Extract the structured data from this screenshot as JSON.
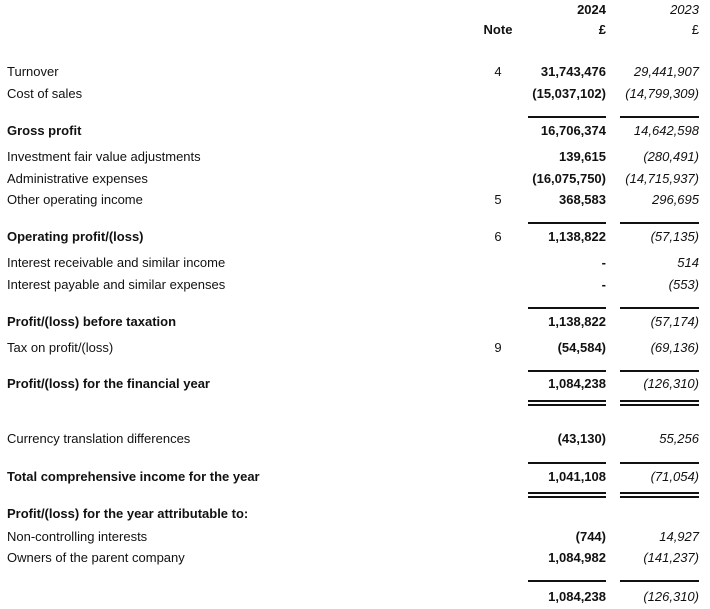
{
  "header": {
    "note_label": "Note",
    "year_current": "2024",
    "year_prior": "2023",
    "currency_current": "£",
    "currency_prior": "£"
  },
  "rows": [
    {
      "label": "Turnover",
      "note": "4",
      "current": "31,743,476",
      "prior": "29,441,907",
      "bold": false
    },
    {
      "label": "Cost of sales",
      "note": "",
      "current": "(15,037,102)",
      "prior": "(14,799,309)",
      "bold": false
    },
    {
      "label": "Gross profit",
      "note": "",
      "current": "16,706,374",
      "prior": "14,642,598",
      "bold": true
    },
    {
      "label": "Investment fair value adjustments",
      "note": "",
      "current": "139,615",
      "prior": "(280,491)",
      "bold": false
    },
    {
      "label": "Administrative expenses",
      "note": "",
      "current": "(16,075,750)",
      "prior": "(14,715,937)",
      "bold": false
    },
    {
      "label": "Other operating income",
      "note": "5",
      "current": "368,583",
      "prior": "296,695",
      "bold": false
    },
    {
      "label": "Operating profit/(loss)",
      "note": "6",
      "current": "1,138,822",
      "prior": "(57,135)",
      "bold": true
    },
    {
      "label": "Interest receivable and similar income",
      "note": "",
      "current": "-",
      "prior": "514",
      "bold": false
    },
    {
      "label": "Interest payable and similar expenses",
      "note": "",
      "current": "-",
      "prior": "(553)",
      "bold": false
    },
    {
      "label": "Profit/(loss) before taxation",
      "note": "",
      "current": "1,138,822",
      "prior": "(57,174)",
      "bold": true
    },
    {
      "label": "Tax on profit/(loss)",
      "note": "9",
      "current": "(54,584)",
      "prior": "(69,136)",
      "bold": false
    },
    {
      "label": "Profit/(loss) for the financial year",
      "note": "",
      "current": "1,084,238",
      "prior": "(126,310)",
      "bold": true
    },
    {
      "label": "Currency translation differences",
      "note": "",
      "current": "(43,130)",
      "prior": "55,256",
      "bold": false
    },
    {
      "label": "Total comprehensive income for the year",
      "note": "",
      "current": "1,041,108",
      "prior": "(71,054)",
      "bold": true
    },
    {
      "label": "Profit/(loss) for the year attributable to:",
      "note": "",
      "current": "",
      "prior": "",
      "bold": true
    },
    {
      "label": "Non-controlling interests",
      "note": "",
      "current": "(744)",
      "prior": "14,927",
      "bold": false
    },
    {
      "label": "Owners of the parent company",
      "note": "",
      "current": "1,084,982",
      "prior": "(141,237)",
      "bold": false
    },
    {
      "label": "",
      "note": "",
      "current": "1,084,238",
      "prior": "(126,310)",
      "bold": false
    }
  ]
}
